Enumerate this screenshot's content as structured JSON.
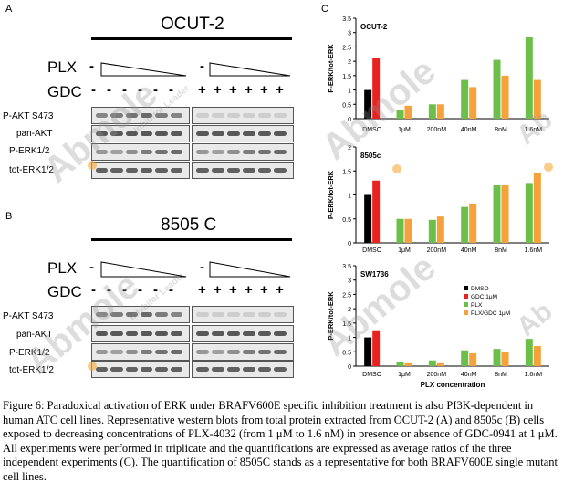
{
  "panel_a": {
    "letter": "A",
    "cell_line": "OCUT-2",
    "plx_label": "PLX",
    "gdc_label": "GDC",
    "plx_control": "-",
    "plx_control_2": "-",
    "gdc_signs": [
      "-",
      "-",
      "-",
      "-",
      "-",
      "-",
      "+",
      "+",
      "+",
      "+",
      "+",
      "+"
    ],
    "blot_labels": [
      "P-AKT S473",
      "pan-AKT",
      "P-ERK1/2",
      "tot-ERK1/2"
    ]
  },
  "panel_b": {
    "letter": "B",
    "cell_line": "8505 C",
    "plx_label": "PLX",
    "gdc_label": "GDC",
    "plx_control": "-",
    "plx_control_2": "-",
    "gdc_signs": [
      "-",
      "-",
      "-",
      "-",
      "-",
      "-",
      "+",
      "+",
      "+",
      "+",
      "+",
      "+"
    ],
    "blot_labels": [
      "P-AKT S473",
      "pan-AKT",
      "P-ERK1/2",
      "tot-ERK1/2"
    ]
  },
  "panel_c": {
    "letter": "C",
    "xlabel": "PLX concentration"
  },
  "watermark": {
    "brand": "Abmole",
    "tagline": "Inhibitor Leader"
  },
  "colors": {
    "dmso": "#000000",
    "gdc": "#e8231f",
    "plx": "#6cc04a",
    "plx_gdc": "#f5a23d"
  },
  "chart_data": [
    {
      "type": "bar",
      "title": "OCUT-2",
      "ylabel": "P-ERK/tot-ERK",
      "ylim": [
        0,
        3.5
      ],
      "yticks": [
        "0",
        "0.5",
        "1",
        "1.5",
        "2",
        "2.5",
        "3",
        "3.5"
      ],
      "categories": [
        "DMSO",
        "1μM",
        "200nM",
        "40nM",
        "8nM",
        "1.6nM"
      ],
      "bars": [
        [
          {
            "s": "dmso",
            "v": 1.0
          },
          {
            "s": "gdc",
            "v": 2.1
          }
        ],
        [
          {
            "s": "plx",
            "v": 0.3
          },
          {
            "s": "plx_gdc",
            "v": 0.45
          }
        ],
        [
          {
            "s": "plx",
            "v": 0.5
          },
          {
            "s": "plx_gdc",
            "v": 0.5
          }
        ],
        [
          {
            "s": "plx",
            "v": 1.35
          },
          {
            "s": "plx_gdc",
            "v": 1.1
          }
        ],
        [
          {
            "s": "plx",
            "v": 2.05
          },
          {
            "s": "plx_gdc",
            "v": 1.5
          }
        ],
        [
          {
            "s": "plx",
            "v": 2.85
          },
          {
            "s": "plx_gdc",
            "v": 1.35
          }
        ]
      ]
    },
    {
      "type": "bar",
      "title": "8505c",
      "ylabel": "P-ERK/tot-ERK",
      "ylim": [
        0,
        2
      ],
      "yticks": [
        "0",
        "0.5",
        "1",
        "1.5",
        "2"
      ],
      "categories": [
        "DMSO",
        "1μM",
        "200nM",
        "40nM",
        "8nM",
        "1.6nM"
      ],
      "bars": [
        [
          {
            "s": "dmso",
            "v": 1.0
          },
          {
            "s": "gdc",
            "v": 1.3
          }
        ],
        [
          {
            "s": "plx",
            "v": 0.5
          },
          {
            "s": "plx_gdc",
            "v": 0.5
          }
        ],
        [
          {
            "s": "plx",
            "v": 0.48
          },
          {
            "s": "plx_gdc",
            "v": 0.55
          }
        ],
        [
          {
            "s": "plx",
            "v": 0.75
          },
          {
            "s": "plx_gdc",
            "v": 0.82
          }
        ],
        [
          {
            "s": "plx",
            "v": 1.2
          },
          {
            "s": "plx_gdc",
            "v": 1.2
          }
        ],
        [
          {
            "s": "plx",
            "v": 1.25
          },
          {
            "s": "plx_gdc",
            "v": 1.45
          }
        ]
      ]
    },
    {
      "type": "bar",
      "title": "SW1736",
      "ylabel": "P-ERK/tot-ERK",
      "ylim": [
        0,
        3.5
      ],
      "yticks": [
        "0",
        "0.5",
        "1",
        "1.5",
        "2",
        "2.5",
        "3",
        "3.5"
      ],
      "categories": [
        "DMSO",
        "1μM",
        "200nM",
        "40nM",
        "8nM",
        "1.6nM"
      ],
      "legend": [
        "DMSO",
        "GDC 1μM",
        "PLX",
        "PLX/GDC 1μM"
      ],
      "bars": [
        [
          {
            "s": "dmso",
            "v": 1.0
          },
          {
            "s": "gdc",
            "v": 1.25
          }
        ],
        [
          {
            "s": "plx",
            "v": 0.15
          },
          {
            "s": "plx_gdc",
            "v": 0.1
          }
        ],
        [
          {
            "s": "plx",
            "v": 0.2
          },
          {
            "s": "plx_gdc",
            "v": 0.1
          }
        ],
        [
          {
            "s": "plx",
            "v": 0.55
          },
          {
            "s": "plx_gdc",
            "v": 0.45
          }
        ],
        [
          {
            "s": "plx",
            "v": 0.6
          },
          {
            "s": "plx_gdc",
            "v": 0.5
          }
        ],
        [
          {
            "s": "plx",
            "v": 0.95
          },
          {
            "s": "plx_gdc",
            "v": 0.7
          }
        ]
      ]
    }
  ],
  "caption": {
    "text": "Figure 6: Paradoxical activation of ERK under BRAFV600E specific inhibition treatment is also PI3K-dependent in human ATC cell lines. Representative western blots from total protein extracted from OCUT-2 (A) and 8505c (B) cells exposed to decreasing concentrations of PLX-4032 (from 1 μM to 1.6 nM) in presence or absence of GDC-0941 at 1 μM. All experiments were performed in triplicate and the quantifications are expressed as average ratios of the three independent experiments (C). The quantification of 8505C stands as a representative for both BRAFV600E single mutant cell lines."
  }
}
